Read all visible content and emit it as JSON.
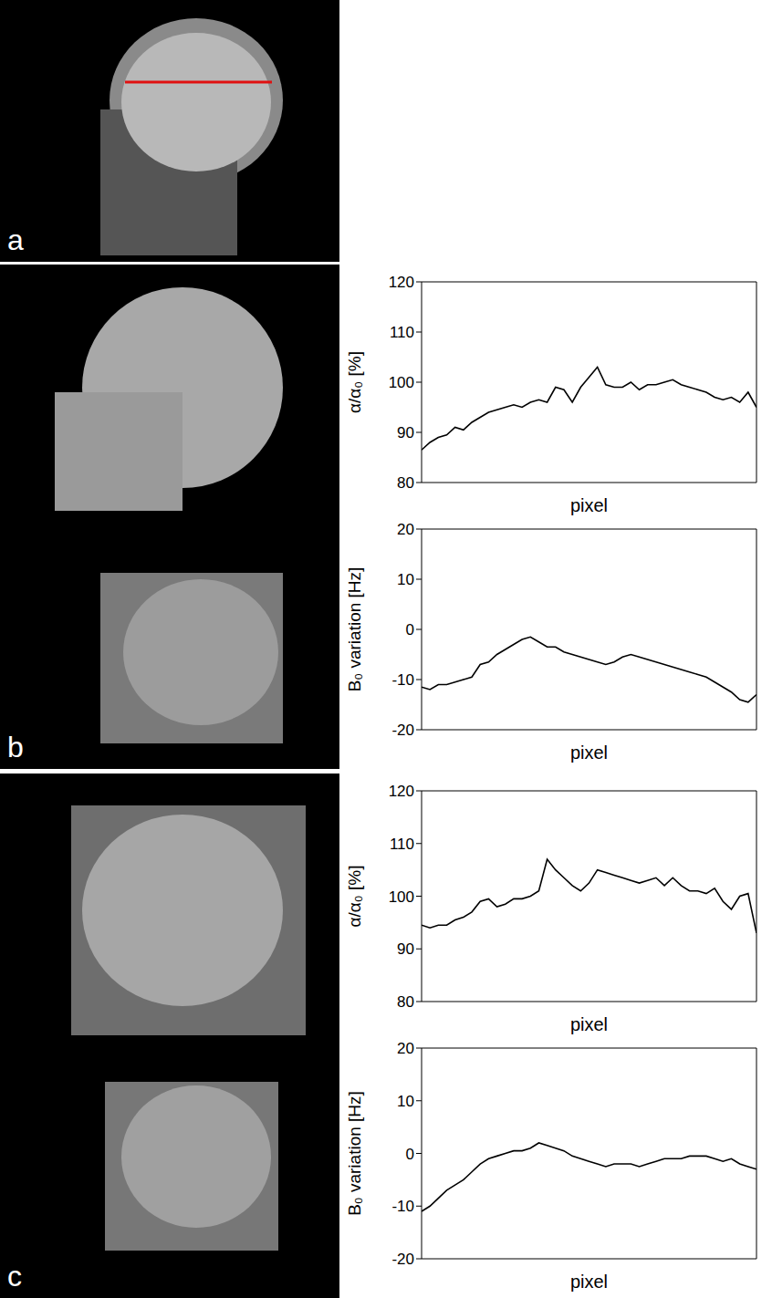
{
  "panels": [
    {
      "label": "a"
    },
    {
      "label": "b"
    },
    {
      "label": "c"
    }
  ],
  "chart_data": [
    {
      "type": "line",
      "x": [
        0,
        1,
        2,
        3,
        4,
        5,
        6,
        7,
        8,
        9,
        10,
        11,
        12,
        13,
        14,
        15,
        16,
        17,
        18,
        19,
        20,
        21,
        22,
        23,
        24,
        25,
        26,
        27,
        28,
        29,
        30,
        31,
        32,
        33,
        34,
        35,
        36,
        37,
        38,
        39,
        40
      ],
      "values": [
        86.5,
        88,
        89,
        89.5,
        91,
        90.5,
        92,
        93,
        94,
        94.5,
        95,
        95.5,
        95,
        96,
        96.5,
        96,
        99,
        98.5,
        96,
        99,
        101,
        103,
        99.5,
        99,
        99,
        100,
        98.5,
        99.5,
        99.5,
        100,
        100.5,
        99.5,
        99,
        98.5,
        98,
        97,
        96.5,
        97,
        96,
        98,
        95
      ],
      "color": "#000000",
      "xlabel": "pixel",
      "ylabel": "α/α₀ [%]",
      "xlim": [
        0,
        40
      ],
      "ylim": [
        80,
        120
      ],
      "yticks": [
        80,
        90,
        100,
        110,
        120
      ],
      "tick_labels": "y"
    },
    {
      "type": "line",
      "x": [
        0,
        1,
        2,
        3,
        4,
        5,
        6,
        7,
        8,
        9,
        10,
        11,
        12,
        13,
        14,
        15,
        16,
        17,
        18,
        19,
        20,
        21,
        22,
        23,
        24,
        25,
        26,
        27,
        28,
        29,
        30,
        31,
        32,
        33,
        34,
        35,
        36,
        37,
        38,
        39,
        40
      ],
      "values": [
        -11.5,
        -12,
        -11,
        -11,
        -10.5,
        -10,
        -9.5,
        -7,
        -6.5,
        -5,
        -4,
        -3,
        -2,
        -1.5,
        -2.5,
        -3.5,
        -3.5,
        -4.5,
        -5,
        -5.5,
        -6,
        -6.5,
        -7,
        -6.5,
        -5.5,
        -5,
        -5.5,
        -6,
        -6.5,
        -7,
        -7.5,
        -8,
        -8.5,
        -9,
        -9.5,
        -10.5,
        -11.5,
        -12.5,
        -14,
        -14.5,
        -13
      ],
      "color": "#000000",
      "xlabel": "pixel",
      "ylabel": "B₀ variation [Hz]",
      "xlim": [
        0,
        40
      ],
      "ylim": [
        -20,
        20
      ],
      "yticks": [
        -20,
        -10,
        0,
        10,
        20
      ],
      "tick_labels": "y"
    },
    {
      "type": "line",
      "x": [
        0,
        1,
        2,
        3,
        4,
        5,
        6,
        7,
        8,
        9,
        10,
        11,
        12,
        13,
        14,
        15,
        16,
        17,
        18,
        19,
        20,
        21,
        22,
        23,
        24,
        25,
        26,
        27,
        28,
        29,
        30,
        31,
        32,
        33,
        34,
        35,
        36,
        37,
        38,
        39,
        40
      ],
      "values": [
        94.5,
        94,
        94.5,
        94.5,
        95.5,
        96,
        97,
        99,
        99.5,
        98,
        98.5,
        99.5,
        99.5,
        100,
        101,
        107,
        105,
        103.5,
        102,
        101,
        102.5,
        105,
        104.5,
        104,
        103.5,
        103,
        102.5,
        103,
        103.5,
        102,
        103.5,
        102,
        101,
        101,
        100.5,
        101.5,
        99,
        97.5,
        100,
        100.5,
        93
      ],
      "color": "#000000",
      "xlabel": "pixel",
      "ylabel": "α/α₀ [%]",
      "xlim": [
        0,
        40
      ],
      "ylim": [
        80,
        120
      ],
      "yticks": [
        80,
        90,
        100,
        110,
        120
      ],
      "tick_labels": "y"
    },
    {
      "type": "line",
      "x": [
        0,
        1,
        2,
        3,
        4,
        5,
        6,
        7,
        8,
        9,
        10,
        11,
        12,
        13,
        14,
        15,
        16,
        17,
        18,
        19,
        20,
        21,
        22,
        23,
        24,
        25,
        26,
        27,
        28,
        29,
        30,
        31,
        32,
        33,
        34,
        35,
        36,
        37,
        38,
        39,
        40
      ],
      "values": [
        -11,
        -10,
        -8.5,
        -7,
        -6,
        -5,
        -3.5,
        -2,
        -1,
        -0.5,
        0,
        0.5,
        0.5,
        1,
        2,
        1.5,
        1,
        0.5,
        -0.5,
        -1,
        -1.5,
        -2,
        -2.5,
        -2,
        -2,
        -2,
        -2.5,
        -2,
        -1.5,
        -1,
        -1,
        -1,
        -0.5,
        -0.5,
        -0.5,
        -1,
        -1.5,
        -1,
        -2,
        -2.5,
        -3
      ],
      "color": "#000000",
      "xlabel": "pixel",
      "ylabel": "B₀ variation [Hz]",
      "xlim": [
        0,
        40
      ],
      "ylim": [
        -20,
        20
      ],
      "yticks": [
        -20,
        -10,
        0,
        10,
        20
      ],
      "tick_labels": "y"
    }
  ]
}
